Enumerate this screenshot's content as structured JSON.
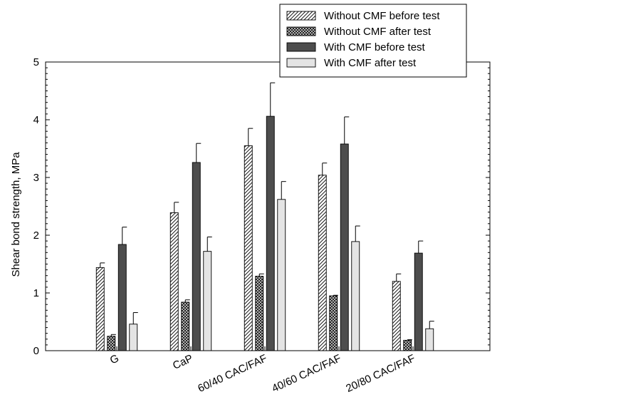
{
  "chart_data": {
    "type": "bar",
    "title": "",
    "xlabel": "",
    "ylabel": "Shear bond strength, MPa",
    "ylim": [
      0,
      5
    ],
    "yticks": [
      0,
      1,
      2,
      3,
      4,
      5
    ],
    "grid": false,
    "legend_position": "top-right",
    "categories": [
      "G",
      "CaP",
      "60/40 CAC/FAF",
      "40/60 CAC/FAF",
      "20/80 CAC/FAF"
    ],
    "series": [
      {
        "name": "Without CMF before test",
        "pattern": "diagonal-hatch",
        "color": "#ffffff",
        "values": [
          1.44,
          2.39,
          3.55,
          3.04,
          1.2
        ],
        "errors": [
          0.08,
          0.18,
          0.3,
          0.21,
          0.13
        ]
      },
      {
        "name": "Without CMF after test",
        "pattern": "crosshatch",
        "color": "#cccccc",
        "values": [
          0.25,
          0.84,
          1.29,
          0.95,
          0.18
        ],
        "errors": [
          0.03,
          0.04,
          0.04,
          0.01,
          0.01
        ]
      },
      {
        "name": "With CMF before test",
        "pattern": "solid",
        "color": "#4d4d4d",
        "values": [
          1.84,
          3.26,
          4.06,
          3.58,
          1.69
        ],
        "errors": [
          0.3,
          0.33,
          0.58,
          0.47,
          0.21
        ]
      },
      {
        "name": "With CMF after test",
        "pattern": "solid",
        "color": "#e4e4e4",
        "values": [
          0.46,
          1.72,
          2.62,
          1.89,
          0.38
        ],
        "errors": [
          0.2,
          0.25,
          0.31,
          0.27,
          0.13
        ]
      }
    ]
  }
}
